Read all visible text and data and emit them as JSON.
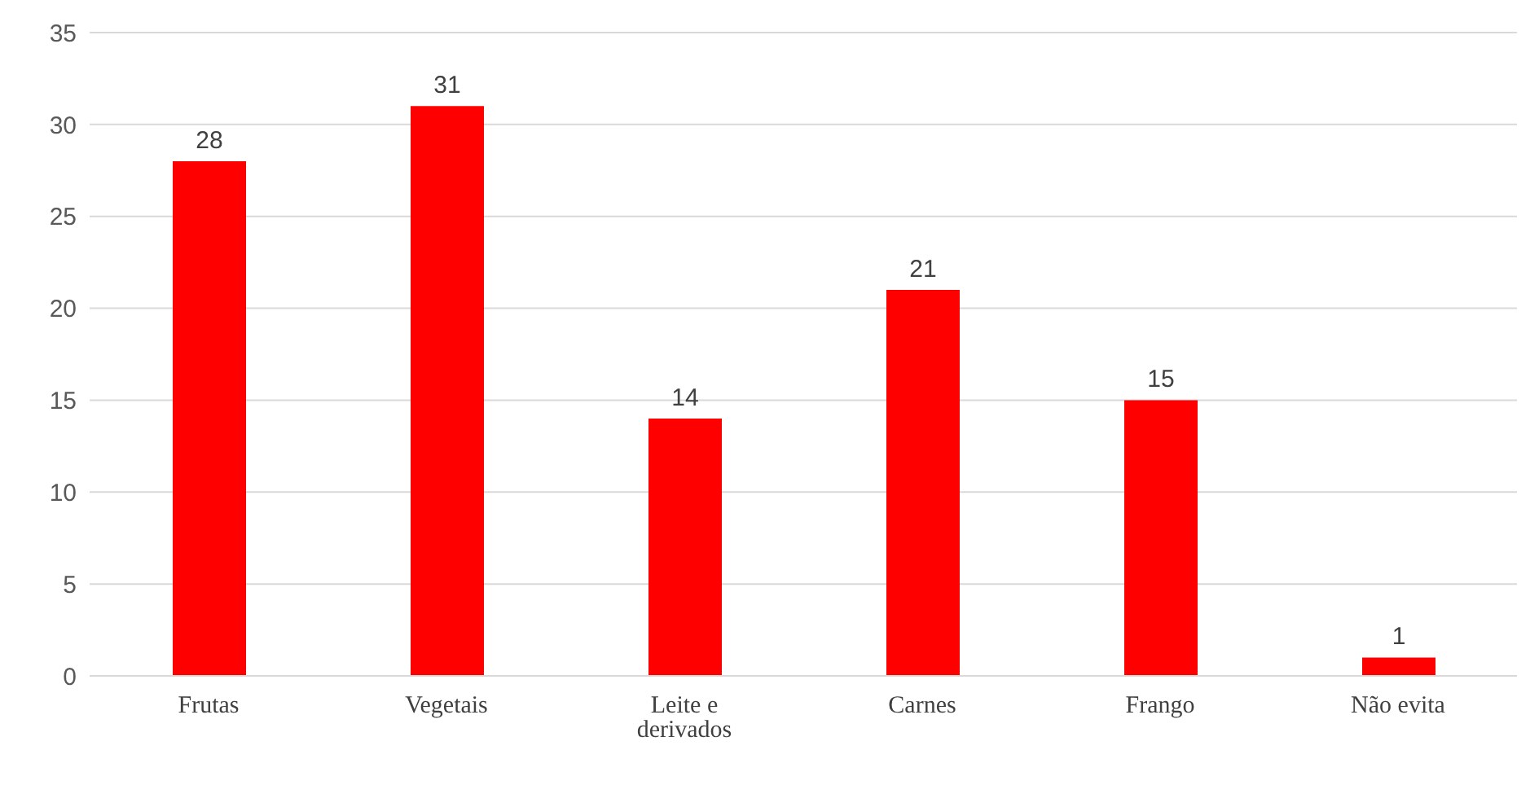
{
  "chart_data": {
    "type": "bar",
    "categories": [
      "Frutas",
      "Vegetais",
      "Leite e derivados",
      "Carnes",
      "Frango",
      "Não evita"
    ],
    "values": [
      28,
      31,
      14,
      21,
      15,
      1
    ],
    "color": "#ff0000",
    "ylim": [
      0,
      35
    ],
    "yticks": [
      0,
      5,
      10,
      15,
      20,
      25,
      30,
      35
    ],
    "grid": "y",
    "data_labels": true
  }
}
